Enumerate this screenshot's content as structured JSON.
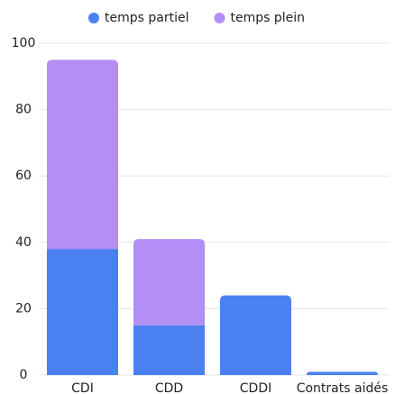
{
  "chart_data": {
    "type": "stacked_bar",
    "categories": [
      "CDI",
      "CDD",
      "CDDI",
      "Contrats aidés"
    ],
    "series": [
      {
        "name": "temps partiel",
        "color": "#4b80f0",
        "values": [
          38,
          15,
          24,
          1
        ]
      },
      {
        "name": "temps plein",
        "color": "#b38ef5",
        "values": [
          57,
          26,
          0,
          0
        ]
      }
    ],
    "ylim": [
      0,
      100
    ],
    "yticks": [
      0,
      20,
      40,
      60,
      80,
      100
    ],
    "grid": true,
    "legend": "top"
  }
}
